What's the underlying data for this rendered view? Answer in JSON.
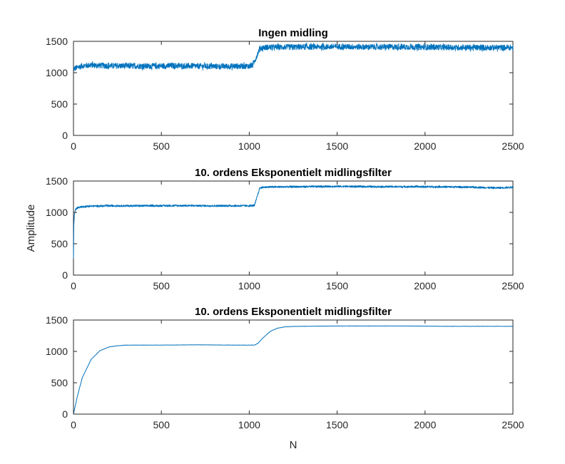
{
  "chart_data": [
    {
      "type": "line",
      "title": "Ingen midling",
      "xlim": [
        0,
        2500
      ],
      "ylim": [
        0,
        1500
      ],
      "x_ticks": [
        0,
        500,
        1000,
        1500,
        2000,
        2500
      ],
      "y_ticks": [
        0,
        500,
        1000,
        1500
      ],
      "x_tick_labels": [
        "0",
        "500",
        "1000",
        "1500",
        "2000",
        "2500"
      ],
      "y_tick_labels": [
        "0",
        "500",
        "1000",
        "1500"
      ],
      "xlabel": "",
      "ylabel": "",
      "line_color": "#0072BD",
      "series": [
        {
          "x": [
            0,
            50,
            100,
            200,
            400,
            600,
            800,
            1000,
            1020,
            1040,
            1060,
            1080,
            1100,
            1300,
            1500,
            1700,
            1900,
            2100,
            2300,
            2500
          ],
          "values": [
            1060,
            1110,
            1120,
            1110,
            1105,
            1110,
            1100,
            1105,
            1120,
            1250,
            1390,
            1400,
            1405,
            1410,
            1415,
            1410,
            1410,
            1405,
            1400,
            1400
          ],
          "noise_amplitude": 45
        }
      ]
    },
    {
      "type": "line",
      "title": "10. ordens Eksponentielt midlingsfilter",
      "xlim": [
        0,
        2500
      ],
      "ylim": [
        0,
        1500
      ],
      "x_ticks": [
        0,
        500,
        1000,
        1500,
        2000,
        2500
      ],
      "y_ticks": [
        0,
        500,
        1000,
        1500
      ],
      "x_tick_labels": [
        "0",
        "500",
        "1000",
        "1500",
        "2000",
        "2500"
      ],
      "y_tick_labels": [
        "0",
        "500",
        "1000",
        "1500"
      ],
      "xlabel": "",
      "ylabel": "Amplitude",
      "line_color": "#0072BD",
      "series": [
        {
          "x": [
            0,
            2,
            5,
            10,
            20,
            30,
            50,
            100,
            200,
            400,
            600,
            800,
            1000,
            1030,
            1050,
            1060,
            1080,
            1100,
            1300,
            1500,
            1700,
            1900,
            2100,
            2300,
            2400,
            2500
          ],
          "values": [
            250,
            800,
            950,
            1040,
            1070,
            1080,
            1090,
            1100,
            1105,
            1105,
            1108,
            1105,
            1105,
            1110,
            1300,
            1390,
            1400,
            1405,
            1410,
            1415,
            1410,
            1410,
            1408,
            1400,
            1390,
            1400
          ],
          "noise_amplitude": 14
        }
      ]
    },
    {
      "type": "line",
      "title": "10. ordens Eksponentielt midlingsfilter",
      "xlim": [
        0,
        2500
      ],
      "ylim": [
        0,
        1500
      ],
      "x_ticks": [
        0,
        500,
        1000,
        1500,
        2000,
        2500
      ],
      "y_ticks": [
        0,
        500,
        1000,
        1500
      ],
      "x_tick_labels": [
        "0",
        "500",
        "1000",
        "1500",
        "2000",
        "2500"
      ],
      "y_tick_labels": [
        "0",
        "500",
        "1000",
        "1500"
      ],
      "xlabel": "N",
      "ylabel": "",
      "line_color": "#0072BD",
      "series": [
        {
          "x": [
            0,
            20,
            50,
            100,
            150,
            200,
            250,
            300,
            500,
            700,
            900,
            1030,
            1050,
            1080,
            1120,
            1160,
            1200,
            1250,
            1300,
            1500,
            1700,
            1900,
            2100,
            2300,
            2500
          ],
          "values": [
            0,
            260,
            580,
            870,
            1010,
            1070,
            1090,
            1100,
            1100,
            1105,
            1100,
            1100,
            1130,
            1220,
            1320,
            1370,
            1390,
            1398,
            1400,
            1405,
            1405,
            1405,
            1400,
            1400,
            1400
          ],
          "noise_amplitude": 2
        }
      ]
    }
  ]
}
